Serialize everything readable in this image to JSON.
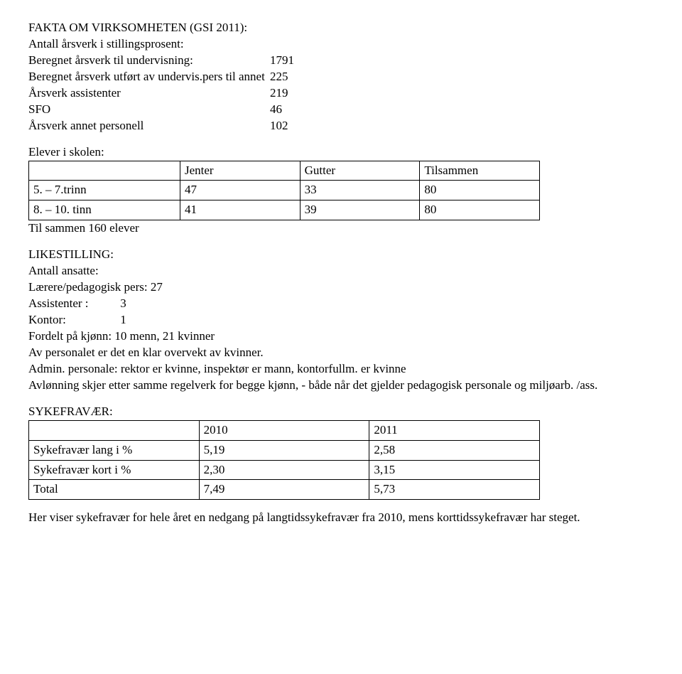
{
  "header": {
    "title": "FAKTA OM VIRKSOMHETEN (GSI 2011):",
    "line1": "Antall årsverk i stillingsprosent:",
    "rows": [
      {
        "label": "Beregnet årsverk til undervisning:",
        "value": "1791"
      },
      {
        "label": "Beregnet årsverk utført av undervis.pers til annet",
        "value": "225"
      },
      {
        "label": "Årsverk assistenter",
        "value": "219"
      },
      {
        "label": "SFO",
        "value": "46"
      },
      {
        "label": "Årsverk annet personell",
        "value": "102"
      }
    ]
  },
  "students": {
    "title": "Elever i skolen:",
    "columns": [
      "",
      "Jenter",
      "Gutter",
      "Tilsammen"
    ],
    "rows": [
      [
        "5. – 7.trinn",
        "47",
        "33",
        "80"
      ],
      [
        "8. – 10. tinn",
        "41",
        "39",
        "80"
      ]
    ],
    "footer": "Til sammen 160 elever"
  },
  "equality": {
    "title": "LIKESTILLING:",
    "line1": "Antall ansatte:",
    "line2": "Lærere/pedagogisk pers: 27",
    "items": [
      {
        "label": "Assistenter :",
        "value": "3"
      },
      {
        "label": "Kontor:",
        "value": "1"
      }
    ],
    "line3": "Fordelt på kjønn: 10 menn, 21 kvinner",
    "line4": "Av personalet er det en klar overvekt av kvinner.",
    "line5": "Admin. personale: rektor er kvinne, inspektør er mann, kontorfullm. er kvinne",
    "line6": "Avlønning skjer etter samme regelverk for begge kjønn, - både når det gjelder pedagogisk personale og miljøarb. /ass."
  },
  "absence": {
    "title": "SYKEFRAVÆR:",
    "columns": [
      "",
      "2010",
      "2011"
    ],
    "rows": [
      [
        "Sykefravær lang i %",
        "5,19",
        "2,58"
      ],
      [
        "Sykefravær kort i %",
        "2,30",
        "3,15"
      ],
      [
        "Total",
        "7,49",
        "5,73"
      ]
    ],
    "note": "Her viser sykefravær for hele året en nedgang på langtidssykefravær fra 2010, mens korttidssykefravær har steget."
  }
}
